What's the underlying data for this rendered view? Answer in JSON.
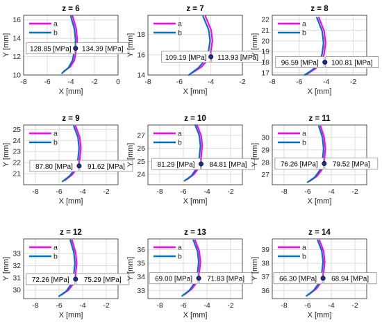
{
  "colors": {
    "a": "#ff00ff",
    "b": "#0072bd",
    "marker": "#1f2f8f",
    "grid": "#dcdcdc"
  },
  "chart_data": [
    {
      "type": "line",
      "title": "z = 6",
      "xlabel": "X [mm]",
      "ylabel": "Y [mm]",
      "xlim": [
        -8,
        0
      ],
      "ylim": [
        10,
        16.5
      ],
      "xticks": [
        -8,
        -6,
        -4,
        -2,
        0
      ],
      "yticks": [
        10,
        12,
        14,
        16
      ],
      "grid": true,
      "legend": "top-left",
      "series": [
        {
          "name": "a",
          "x": [
            -4.6,
            -4.05,
            -3.7,
            -3.55,
            -3.45,
            -3.55,
            -3.85
          ],
          "y": [
            10.4,
            10.9,
            11.6,
            12.7,
            13.8,
            15.0,
            16.4
          ]
        },
        {
          "name": "b",
          "x": [
            -4.75,
            -4.2,
            -3.85,
            -3.7,
            -3.6,
            -3.7,
            -4.0
          ],
          "y": [
            10.2,
            10.8,
            11.6,
            12.7,
            13.8,
            15.0,
            16.4
          ]
        }
      ],
      "marker": {
        "x": -3.6,
        "y": 12.9
      },
      "annotations": [
        {
          "text": "128.85 [MPa]",
          "side": "left"
        },
        {
          "text": "134.39 [MPa]",
          "side": "right"
        }
      ]
    },
    {
      "type": "line",
      "title": "z = 7",
      "xlabel": "X [mm]",
      "ylabel": "Y [mm]",
      "xlim": [
        -8,
        -2
      ],
      "ylim": [
        14,
        19.9
      ],
      "xticks": [
        -8,
        -6,
        -4,
        -2
      ],
      "yticks": [
        14,
        16,
        18
      ],
      "grid": true,
      "legend": "top-left",
      "series": [
        {
          "name": "a",
          "x": [
            -5.2,
            -4.6,
            -4.2,
            -4.0,
            -3.9,
            -4.0,
            -4.35
          ],
          "y": [
            14.2,
            14.8,
            15.5,
            16.4,
            17.4,
            18.5,
            19.8
          ]
        },
        {
          "name": "b",
          "x": [
            -5.4,
            -4.8,
            -4.35,
            -4.15,
            -4.05,
            -4.15,
            -4.5
          ],
          "y": [
            14.0,
            14.7,
            15.5,
            16.4,
            17.4,
            18.5,
            19.8
          ]
        }
      ],
      "marker": {
        "x": -4.0,
        "y": 15.8
      },
      "annotations": [
        {
          "text": "109.19 [MPa]",
          "side": "left"
        },
        {
          "text": "113.93 [MPa]",
          "side": "right"
        }
      ]
    },
    {
      "type": "line",
      "title": "z = 8",
      "xlabel": "X [mm]",
      "ylabel": "Y [mm]",
      "xlim": [
        -8,
        -1
      ],
      "ylim": [
        16.8,
        22.4
      ],
      "xticks": [
        -8,
        -6,
        -4,
        -2
      ],
      "yticks": [
        17,
        18,
        19,
        20,
        21,
        22
      ],
      "grid": true,
      "legend": "top-left",
      "series": [
        {
          "name": "a",
          "x": [
            -5.4,
            -4.8,
            -4.35,
            -4.15,
            -4.05,
            -4.15,
            -4.55
          ],
          "y": [
            16.9,
            17.4,
            18.0,
            18.8,
            19.8,
            20.9,
            22.2
          ]
        },
        {
          "name": "b",
          "x": [
            -5.6,
            -5.0,
            -4.5,
            -4.3,
            -4.2,
            -4.3,
            -4.7
          ],
          "y": [
            16.8,
            17.3,
            18.0,
            18.8,
            19.8,
            20.9,
            22.2
          ]
        }
      ],
      "marker": {
        "x": -4.1,
        "y": 18.0
      },
      "annotations": [
        {
          "text": "96.59 [MPa]",
          "side": "left"
        },
        {
          "text": "100.81 [MPa]",
          "side": "right"
        }
      ]
    },
    {
      "type": "line",
      "title": "z = 9",
      "xlabel": "X [mm]",
      "ylabel": "Y [mm]",
      "xlim": [
        -9,
        -1
      ],
      "ylim": [
        20,
        25.4
      ],
      "xticks": [
        -8,
        -6,
        -4,
        -2
      ],
      "yticks": [
        21,
        22,
        23,
        24,
        25
      ],
      "grid": true,
      "legend": "top-left",
      "series": [
        {
          "name": "a",
          "x": [
            -5.5,
            -4.9,
            -4.45,
            -4.25,
            -4.15,
            -4.25,
            -4.6
          ],
          "y": [
            20.4,
            20.9,
            21.5,
            22.3,
            23.3,
            24.3,
            25.3
          ]
        },
        {
          "name": "b",
          "x": [
            -5.7,
            -5.1,
            -4.6,
            -4.4,
            -4.3,
            -4.4,
            -4.75
          ],
          "y": [
            20.3,
            20.8,
            21.5,
            22.3,
            23.3,
            24.3,
            25.3
          ]
        }
      ],
      "marker": {
        "x": -4.3,
        "y": 21.7
      },
      "annotations": [
        {
          "text": "87.80 [MPa]",
          "side": "left"
        },
        {
          "text": "91.62 [MPa]",
          "side": "right"
        }
      ]
    },
    {
      "type": "line",
      "title": "z = 10",
      "xlabel": "X [mm]",
      "ylabel": "Y [mm]",
      "xlim": [
        -9,
        -1
      ],
      "ylim": [
        23.2,
        27.8
      ],
      "xticks": [
        -8,
        -6,
        -4,
        -2
      ],
      "yticks": [
        24,
        25,
        26,
        27
      ],
      "grid": true,
      "legend": "top-left",
      "series": [
        {
          "name": "a",
          "x": [
            -5.7,
            -5.1,
            -4.7,
            -4.5,
            -4.4,
            -4.5,
            -4.85
          ],
          "y": [
            23.6,
            24.0,
            24.5,
            25.3,
            26.2,
            27.0,
            27.8
          ]
        },
        {
          "name": "b",
          "x": [
            -5.9,
            -5.3,
            -4.85,
            -4.65,
            -4.55,
            -4.65,
            -5.0
          ],
          "y": [
            23.5,
            23.9,
            24.5,
            25.3,
            26.2,
            27.0,
            27.8
          ]
        }
      ],
      "marker": {
        "x": -4.5,
        "y": 24.8
      },
      "annotations": [
        {
          "text": "81.29 [MPa]",
          "side": "left"
        },
        {
          "text": "84.81 [MPa]",
          "side": "right"
        }
      ]
    },
    {
      "type": "line",
      "title": "z = 11",
      "xlabel": "X [mm]",
      "ylabel": "Y [mm]",
      "xlim": [
        -9,
        -1
      ],
      "ylim": [
        26.2,
        31
      ],
      "xticks": [
        -8,
        -6,
        -4,
        -2
      ],
      "yticks": [
        27,
        28,
        29,
        30
      ],
      "grid": true,
      "legend": "top-left",
      "series": [
        {
          "name": "a",
          "x": [
            -5.8,
            -5.2,
            -4.8,
            -4.6,
            -4.5,
            -4.6,
            -4.9
          ],
          "y": [
            26.5,
            26.9,
            27.4,
            28.1,
            29.1,
            30.0,
            30.9
          ]
        },
        {
          "name": "b",
          "x": [
            -6.0,
            -5.4,
            -4.95,
            -4.75,
            -4.65,
            -4.75,
            -5.05
          ],
          "y": [
            26.4,
            26.8,
            27.4,
            28.1,
            29.1,
            30.0,
            30.9
          ]
        }
      ],
      "marker": {
        "x": -4.6,
        "y": 27.9
      },
      "annotations": [
        {
          "text": "76.26 [MPa]",
          "side": "left"
        },
        {
          "text": "79.52 [MPa]",
          "side": "right"
        }
      ]
    },
    {
      "type": "line",
      "title": "z = 12",
      "xlabel": "X [mm]",
      "ylabel": "Y [mm]",
      "xlim": [
        -9,
        -1
      ],
      "ylim": [
        29.3,
        34.2
      ],
      "xticks": [
        -8,
        -6,
        -4,
        -2
      ],
      "yticks": [
        30,
        31,
        32,
        33
      ],
      "grid": true,
      "legend": "top-left",
      "series": [
        {
          "name": "a",
          "x": [
            -5.8,
            -5.2,
            -4.8,
            -4.6,
            -4.5,
            -4.6,
            -4.9
          ],
          "y": [
            29.6,
            30.0,
            30.5,
            31.3,
            32.2,
            33.1,
            34.1
          ]
        },
        {
          "name": "b",
          "x": [
            -6.0,
            -5.4,
            -4.95,
            -4.75,
            -4.65,
            -4.75,
            -5.05
          ],
          "y": [
            29.5,
            29.9,
            30.5,
            31.3,
            32.2,
            33.1,
            34.1
          ]
        }
      ],
      "marker": {
        "x": -4.6,
        "y": 30.9
      },
      "annotations": [
        {
          "text": "72.26 [MPa]",
          "side": "left"
        },
        {
          "text": "75.29 [MPa]",
          "side": "right"
        }
      ]
    },
    {
      "type": "line",
      "title": "z = 13",
      "xlabel": "X [mm]",
      "ylabel": "Y [mm]",
      "xlim": [
        -9,
        -1
      ],
      "ylim": [
        32.4,
        36.8
      ],
      "xticks": [
        -8,
        -6,
        -4,
        -2
      ],
      "yticks": [
        33,
        34,
        35,
        36
      ],
      "grid": true,
      "legend": "top-left",
      "series": [
        {
          "name": "a",
          "x": [
            -5.9,
            -5.3,
            -4.85,
            -4.65,
            -4.55,
            -4.65,
            -5.0
          ],
          "y": [
            32.7,
            33.1,
            33.6,
            34.3,
            35.1,
            35.9,
            36.7
          ]
        },
        {
          "name": "b",
          "x": [
            -6.1,
            -5.5,
            -5.0,
            -4.8,
            -4.7,
            -4.8,
            -5.15
          ],
          "y": [
            32.6,
            33.0,
            33.6,
            34.3,
            35.1,
            35.9,
            36.7
          ]
        }
      ],
      "marker": {
        "x": -4.7,
        "y": 33.9
      },
      "annotations": [
        {
          "text": "69.00 [MPa]",
          "side": "left"
        },
        {
          "text": "71.83 [MPa]",
          "side": "right"
        }
      ]
    },
    {
      "type": "line",
      "title": "z = 14",
      "xlabel": "X [mm]",
      "ylabel": "Y [mm]",
      "xlim": [
        -9,
        -1
      ],
      "ylim": [
        35.4,
        39.8
      ],
      "xticks": [
        -8,
        -6,
        -4,
        -2
      ],
      "yticks": [
        36,
        37,
        38,
        39
      ],
      "grid": true,
      "legend": "top-left",
      "series": [
        {
          "name": "a",
          "x": [
            -5.9,
            -5.3,
            -4.85,
            -4.65,
            -4.55,
            -4.65,
            -5.0
          ],
          "y": [
            35.7,
            36.1,
            36.6,
            37.3,
            38.1,
            38.9,
            39.7
          ]
        },
        {
          "name": "b",
          "x": [
            -6.1,
            -5.5,
            -5.0,
            -4.8,
            -4.7,
            -4.8,
            -5.15
          ],
          "y": [
            35.6,
            36.0,
            36.6,
            37.3,
            38.1,
            38.9,
            39.7
          ]
        }
      ],
      "marker": {
        "x": -4.7,
        "y": 36.9
      },
      "annotations": [
        {
          "text": "66.30 [MPa]",
          "side": "left"
        },
        {
          "text": "68.94 [MPa]",
          "side": "right"
        }
      ]
    }
  ]
}
